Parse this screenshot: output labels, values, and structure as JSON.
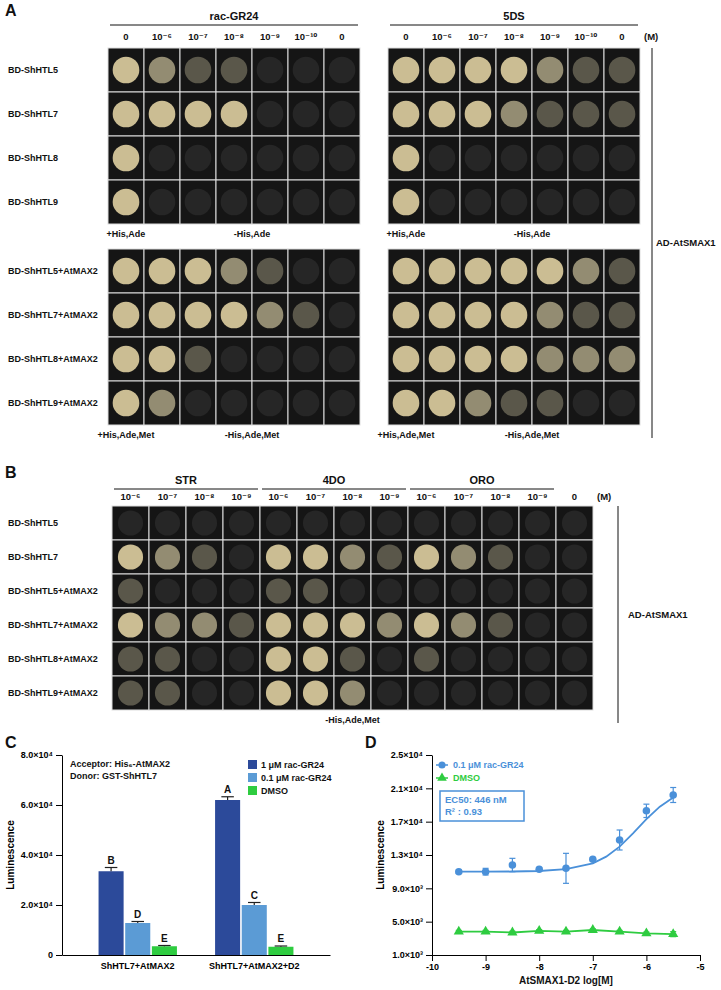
{
  "spot_assays": [
    {
      "label": "A",
      "unit": "(M)",
      "prey": "AD-AtSMAX1",
      "treatments": [
        {
          "name": "rac-GR24",
          "concentrations": [
            "0",
            "10⁻⁶",
            "10⁻⁷",
            "10⁻⁸",
            "10⁻⁹",
            "10⁻¹⁰",
            "0"
          ]
        },
        {
          "name": "5DS",
          "concentrations": [
            "0",
            "10⁻⁶",
            "10⁻⁷",
            "10⁻⁸",
            "10⁻⁹",
            "10⁻¹⁰",
            "0"
          ]
        }
      ],
      "groups": [
        {
          "media": [
            "+His,Ade",
            "-His,Ade"
          ],
          "rows": [
            {
              "name": "BD-ShHTL5",
              "growth": [
                [
                  3,
                  2,
                  1,
                  1,
                  0,
                  0,
                  0
                ],
                [
                  3,
                  3,
                  3,
                  3,
                  2,
                  1,
                  1
                ]
              ]
            },
            {
              "name": "BD-ShHTL7",
              "growth": [
                [
                  3,
                  3,
                  3,
                  3,
                  0,
                  0,
                  0
                ],
                [
                  3,
                  3,
                  3,
                  2,
                  1,
                  1,
                  1
                ]
              ]
            },
            {
              "name": "BD-ShHTL8",
              "growth": [
                [
                  3,
                  0,
                  0,
                  0,
                  0,
                  0,
                  0
                ],
                [
                  3,
                  0,
                  0,
                  0,
                  0,
                  0,
                  0
                ]
              ]
            },
            {
              "name": "BD-ShHTL9",
              "growth": [
                [
                  3,
                  0,
                  0,
                  0,
                  0,
                  0,
                  0
                ],
                [
                  3,
                  0,
                  0,
                  0,
                  0,
                  0,
                  0
                ]
              ]
            }
          ]
        },
        {
          "media": [
            "+His,Ade,Met",
            "-His,Ade,Met"
          ],
          "rows": [
            {
              "name": "BD-ShHTL5+AtMAX2",
              "growth": [
                [
                  3,
                  3,
                  3,
                  2,
                  1,
                  0,
                  0
                ],
                [
                  3,
                  3,
                  3,
                  3,
                  3,
                  2,
                  1
                ]
              ]
            },
            {
              "name": "BD-ShHTL7+AtMAX2",
              "growth": [
                [
                  3,
                  3,
                  3,
                  3,
                  2,
                  1,
                  0
                ],
                [
                  3,
                  3,
                  3,
                  3,
                  2,
                  1,
                  1
                ]
              ]
            },
            {
              "name": "BD-ShHTL8+AtMAX2",
              "growth": [
                [
                  3,
                  3,
                  1,
                  0,
                  0,
                  0,
                  0
                ],
                [
                  3,
                  3,
                  3,
                  3,
                  2,
                  2,
                  2
                ]
              ]
            },
            {
              "name": "BD-ShHTL9+AtMAX2",
              "growth": [
                [
                  3,
                  2,
                  0,
                  0,
                  0,
                  0,
                  0
                ],
                [
                  3,
                  3,
                  2,
                  1,
                  1,
                  0,
                  0
                ]
              ]
            }
          ]
        }
      ]
    },
    {
      "label": "B",
      "unit": "(M)",
      "prey": "AD-AtSMAX1",
      "treatments": [
        {
          "name": "STR",
          "concentrations": [
            "10⁻⁶",
            "10⁻⁷",
            "10⁻⁸",
            "10⁻⁹"
          ]
        },
        {
          "name": "4DO",
          "concentrations": [
            "10⁻⁶",
            "10⁻⁷",
            "10⁻⁸",
            "10⁻⁹"
          ]
        },
        {
          "name": "ORO",
          "concentrations": [
            "10⁻⁶",
            "10⁻⁷",
            "10⁻⁸",
            "10⁻⁹"
          ]
        },
        {
          "name": null,
          "concentrations": [
            "0"
          ]
        }
      ],
      "groups": [
        {
          "media": [
            "-His,Ade,Met"
          ],
          "rows": [
            {
              "name": "BD-ShHTL5",
              "growth": [
                [
                  0,
                  0,
                  0,
                  0
                ],
                [
                  0,
                  0,
                  0,
                  0
                ],
                [
                  0,
                  0,
                  0,
                  0
                ],
                [
                  0
                ]
              ]
            },
            {
              "name": "BD-ShHTL7",
              "growth": [
                [
                  3,
                  2,
                  1,
                  0
                ],
                [
                  3,
                  3,
                  2,
                  1
                ],
                [
                  3,
                  2,
                  1,
                  0
                ],
                [
                  0
                ]
              ]
            },
            {
              "name": "BD-ShHTL5+AtMAX2",
              "growth": [
                [
                  1,
                  0,
                  0,
                  0
                ],
                [
                  1,
                  1,
                  0,
                  0
                ],
                [
                  0,
                  0,
                  0,
                  0
                ],
                [
                  0
                ]
              ]
            },
            {
              "name": "BD-ShHTL7+AtMAX2",
              "growth": [
                [
                  3,
                  2,
                  2,
                  1
                ],
                [
                  3,
                  3,
                  3,
                  2
                ],
                [
                  3,
                  2,
                  1,
                  0
                ],
                [
                  0
                ]
              ]
            },
            {
              "name": "BD-ShHTL8+AtMAX2",
              "growth": [
                [
                  1,
                  1,
                  0,
                  0
                ],
                [
                  3,
                  3,
                  1,
                  0
                ],
                [
                  1,
                  0,
                  0,
                  0
                ],
                [
                  0
                ]
              ]
            },
            {
              "name": "BD-ShHTL9+AtMAX2",
              "growth": [
                [
                  1,
                  1,
                  0,
                  0
                ],
                [
                  3,
                  3,
                  2,
                  0
                ],
                [
                  0,
                  0,
                  0,
                  0
                ],
                [
                  0
                ]
              ]
            }
          ]
        }
      ]
    }
  ],
  "chart_data": [
    {
      "type": "bar",
      "label": "C",
      "y_label": "Luminescence",
      "annotations": [
        "Acceptor: His₆-AtMAX2",
        "Donor: GST-ShHTL7"
      ],
      "categories": [
        "ShHTL7+AtMAX2",
        "ShHTL7+AtMAX2+D2"
      ],
      "series": [
        {
          "name": "1 μM rac-GR24",
          "color": "#2c4a9a",
          "values": [
            33500,
            62000
          ],
          "errors": [
            1500,
            1300
          ],
          "letters": [
            "B",
            "A"
          ]
        },
        {
          "name": "0.1 μM rac-GR24",
          "color": "#5b9bd5",
          "values": [
            12800,
            20000
          ],
          "errors": [
            600,
            1000
          ],
          "letters": [
            "D",
            "C"
          ]
        },
        {
          "name": "DMSO",
          "color": "#2ecc40",
          "values": [
            3500,
            3300
          ],
          "errors": [
            300,
            300
          ],
          "letters": [
            "E",
            "E"
          ]
        }
      ],
      "ylim": [
        0,
        80000
      ],
      "yticks": [
        0,
        {
          "value": 20000,
          "label": "2.0×10⁴"
        },
        {
          "value": 40000,
          "label": "4.0×10⁴"
        },
        {
          "value": 60000,
          "label": "6.0×10⁴"
        },
        {
          "value": 80000,
          "label": "8.0×10⁴"
        }
      ],
      "legend": "upper right"
    },
    {
      "type": "scatter",
      "label": "D",
      "x_label": "AtSMAX1-D2 log[M]",
      "y_label": "Luminescence",
      "x": [
        -9.5,
        -9,
        -8.5,
        -8,
        -7.5,
        -7,
        -6.5,
        -6,
        -5.5
      ],
      "series": [
        {
          "name": "0.1 μM rac-GR24",
          "color": "#4a90d9",
          "marker": "circle",
          "line_style": "solid",
          "values": [
            11000,
            11000,
            11800,
            11300,
            11400,
            12500,
            14800,
            18300,
            20200
          ],
          "errors": [
            200,
            400,
            800,
            200,
            1800,
            200,
            1200,
            800,
            900
          ],
          "fit": {
            "x": [
              -9.5,
              -9,
              -8.5,
              -8,
              -7.5,
              -7,
              -6.75,
              -6.5,
              -6.25,
              -6,
              -5.75,
              -5.5
            ],
            "values": [
              11000,
              11000,
              11020,
              11080,
              11300,
              12000,
              12800,
              14000,
              15600,
              17300,
              18800,
              19900
            ]
          }
        },
        {
          "name": "DMSO",
          "color": "#2ecc40",
          "marker": "triangle",
          "line_style": "solid",
          "values": [
            3800,
            3800,
            3700,
            3900,
            3800,
            4000,
            3800,
            3600,
            3500
          ],
          "errors": [
            150,
            150,
            150,
            150,
            150,
            150,
            150,
            150,
            300
          ]
        }
      ],
      "annotation": [
        "EC50: 446 nM",
        "R² : 0.93"
      ],
      "xlim": [
        -10,
        -5
      ],
      "xticks": [
        -10,
        -9,
        -8,
        -7,
        -6,
        -5
      ],
      "ylim": [
        1000,
        25000
      ],
      "yticks": [
        {
          "value": 1000,
          "label": "1.0×10³"
        },
        {
          "value": 5000,
          "label": "5.0×10³"
        },
        {
          "value": 9000,
          "label": "9.0×10³"
        },
        {
          "value": 13000,
          "label": "1.3×10⁴"
        },
        {
          "value": 17000,
          "label": "1.7×10⁴"
        },
        {
          "value": 21000,
          "label": "2.1×10⁴"
        },
        {
          "value": 25000,
          "label": "2.5×10⁴"
        }
      ],
      "legend": "upper left"
    }
  ]
}
